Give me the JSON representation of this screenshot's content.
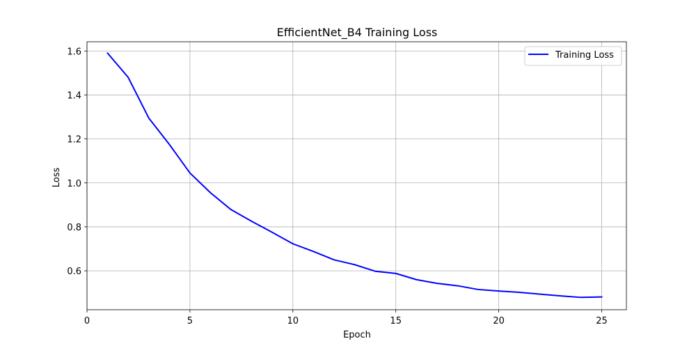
{
  "chart_data": {
    "type": "line",
    "title": "EfficientNet_B4 Training Loss",
    "xlabel": "Epoch",
    "ylabel": "Loss",
    "xlim": [
      0,
      26.2
    ],
    "ylim": [
      0.423,
      1.642
    ],
    "xticks": [
      0,
      5,
      10,
      15,
      20,
      25
    ],
    "yticks": [
      0.6,
      0.8,
      1.0,
      1.2,
      1.4,
      1.6
    ],
    "ytick_labels": [
      "0.6",
      "0.8",
      "1.0",
      "1.2",
      "1.4",
      "1.6"
    ],
    "grid": true,
    "legend_position": "top-right",
    "series": [
      {
        "name": "Training Loss",
        "color": "#0000ff",
        "x": [
          1,
          2,
          3,
          4,
          5,
          6,
          7,
          8,
          9,
          10,
          11,
          12,
          13,
          14,
          15,
          16,
          17,
          18,
          19,
          20,
          21,
          22,
          23,
          24,
          25
        ],
        "y": [
          1.59,
          1.48,
          1.295,
          1.175,
          1.045,
          0.955,
          0.878,
          0.825,
          0.775,
          0.723,
          0.688,
          0.65,
          0.628,
          0.598,
          0.588,
          0.56,
          0.543,
          0.532,
          0.515,
          0.508,
          0.502,
          0.494,
          0.486,
          0.479,
          0.481
        ]
      }
    ]
  }
}
